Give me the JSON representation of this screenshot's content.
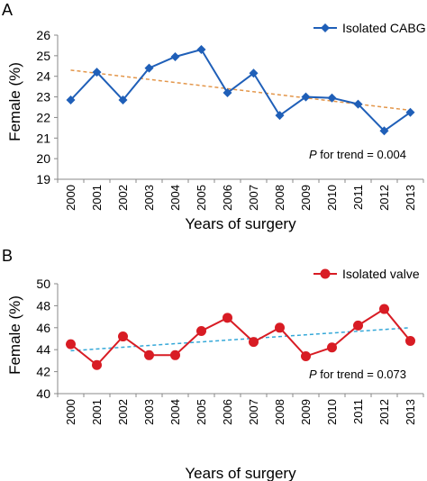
{
  "chart_data": [
    {
      "panel": "A",
      "type": "line",
      "xlabel": "Years of surgery",
      "ylabel": "Female (%)",
      "ylim": [
        19,
        26
      ],
      "yticks": [
        19,
        20,
        21,
        22,
        23,
        24,
        25,
        26
      ],
      "grid": false,
      "legend": "top-right",
      "categories": [
        "2000",
        "2001",
        "2002",
        "2003",
        "2004",
        "2005",
        "2006",
        "2007",
        "2008",
        "2009",
        "2010",
        "2011",
        "2012",
        "2013"
      ],
      "series": [
        {
          "name": "Isolated CABG",
          "marker": "diamond",
          "color": "#1f5fb8",
          "values": [
            22.85,
            24.2,
            22.85,
            24.4,
            24.95,
            25.3,
            23.2,
            24.15,
            22.1,
            23.0,
            22.95,
            22.65,
            21.35,
            22.25
          ]
        }
      ],
      "trendline": {
        "color": "#e3964a",
        "start": 24.3,
        "end": 22.35
      },
      "annotation": {
        "italic": "P",
        "rest": " for trend = 0.004"
      }
    },
    {
      "panel": "B",
      "type": "line",
      "xlabel": "Years of surgery",
      "ylabel": "Female (%)",
      "ylim": [
        40,
        50
      ],
      "yticks": [
        40,
        42,
        44,
        46,
        48,
        50
      ],
      "grid": false,
      "legend": "top-right",
      "categories": [
        "2000",
        "2001",
        "2002",
        "2003",
        "2004",
        "2005",
        "2006",
        "2007",
        "2008",
        "2009",
        "2010",
        "2011",
        "2012",
        "2013"
      ],
      "series": [
        {
          "name": "Isolated valve",
          "marker": "circle",
          "color": "#d81c24",
          "values": [
            44.5,
            42.6,
            45.2,
            43.5,
            43.5,
            45.7,
            46.9,
            44.7,
            46.0,
            43.4,
            44.2,
            46.2,
            47.7,
            44.8
          ]
        }
      ],
      "trendline": {
        "color": "#35a8d8",
        "start": 43.9,
        "end": 46.0
      },
      "annotation": {
        "italic": "P",
        "rest": " for trend = 0.073"
      }
    }
  ]
}
